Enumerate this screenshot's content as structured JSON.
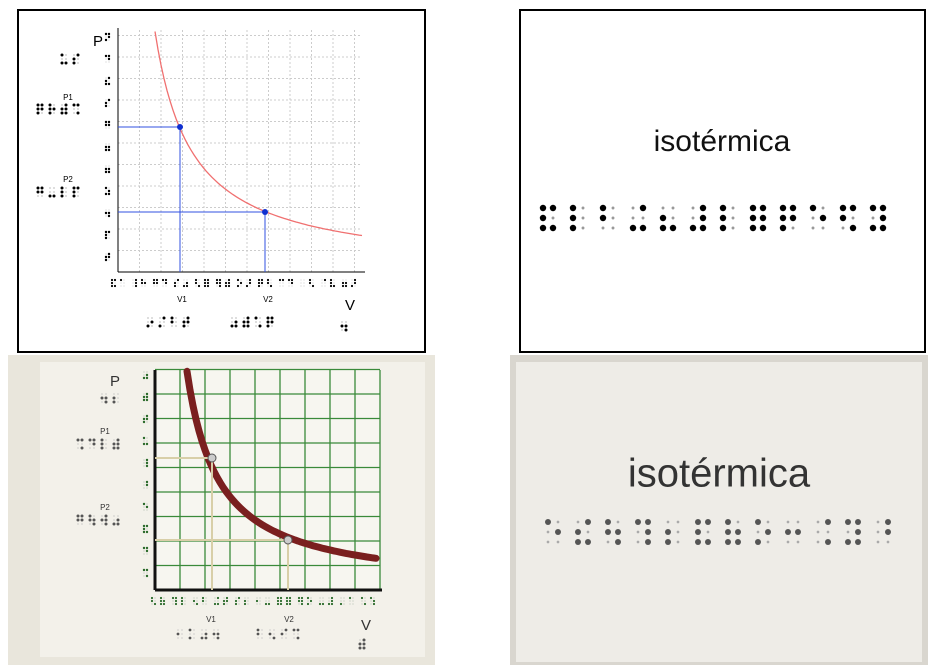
{
  "top_graph": {
    "labels": {
      "p": "P",
      "p1": "P1",
      "p2": "P2",
      "v1": "V1",
      "v2": "V2",
      "v": "V"
    }
  },
  "top_card": {
    "word": "isotérmica"
  },
  "photo_graph": {
    "labels": {
      "p": "P",
      "p1": "P1",
      "p2": "P2",
      "v1": "V1",
      "v2": "V2",
      "v": "V"
    }
  },
  "photo_card": {
    "word": "isotérmica"
  }
}
